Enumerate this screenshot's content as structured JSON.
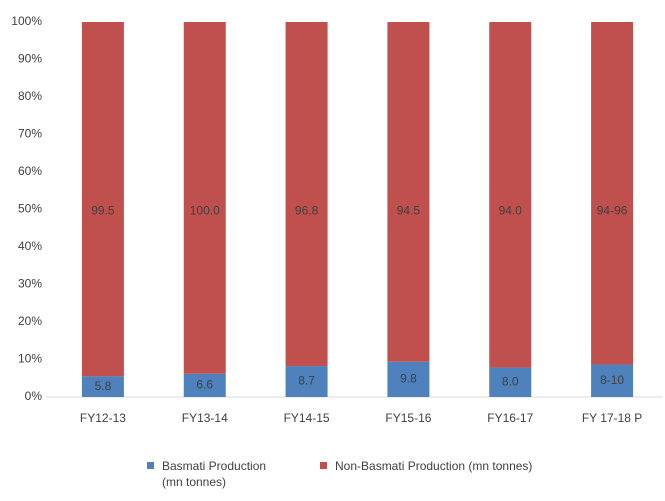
{
  "chart_data": {
    "type": "bar",
    "stack": "percent",
    "categories": [
      "FY12-13",
      "FY13-14",
      "FY14-15",
      "FY15-16",
      "FY16-17",
      "FY 17-18 P"
    ],
    "series": [
      {
        "name": "Basmati Production (mn tonnes)",
        "color": "#4f81bd",
        "values": [
          5.8,
          6.6,
          8.7,
          9.8,
          8.0,
          9
        ],
        "value_labels": [
          "5.8",
          "6.6",
          "8.7",
          "9.8",
          "8.0",
          "8-10"
        ]
      },
      {
        "name": "Non-Basmati Production (mn tonnes)",
        "color": "#c0504d",
        "values": [
          99.5,
          100.0,
          96.8,
          94.5,
          94.0,
          95
        ],
        "value_labels": [
          "99.5",
          "100.0",
          "96.8",
          "94.5",
          "94.0",
          "94-96"
        ]
      }
    ],
    "ylim": [
      0,
      100
    ],
    "yticks": [
      {
        "value": 0,
        "label": "0%"
      },
      {
        "value": 10,
        "label": "10%"
      },
      {
        "value": 20,
        "label": "20%"
      },
      {
        "value": 30,
        "label": "30%"
      },
      {
        "value": 40,
        "label": "40%"
      },
      {
        "value": 50,
        "label": "50%"
      },
      {
        "value": 60,
        "label": "60%"
      },
      {
        "value": 70,
        "label": "70%"
      },
      {
        "value": 80,
        "label": "80%"
      },
      {
        "value": 90,
        "label": "90%"
      },
      {
        "value": 100,
        "label": "100%"
      }
    ],
    "grid": false,
    "legend": "bottom"
  }
}
